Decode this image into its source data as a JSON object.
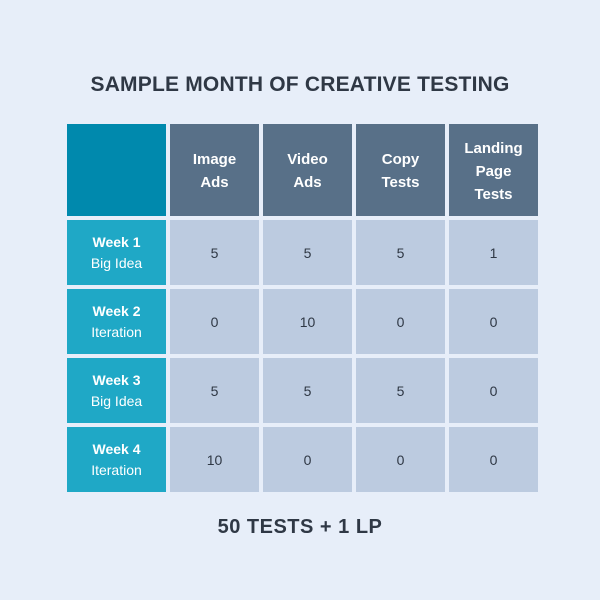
{
  "title": "SAMPLE MONTH OF CREATIVE TESTING",
  "colors": {
    "background": "#e7eef9",
    "corner": "#0089ad",
    "column_header": "#587088",
    "row_header": "#1fa8c6",
    "cell": "#bccbe0",
    "text": "#2f3845"
  },
  "table": {
    "columns": [
      "Image\nAds",
      "Video\nAds",
      "Copy\nTests",
      "Landing\nPage\nTests"
    ],
    "rows": [
      {
        "week": "Week 1",
        "label": "Big Idea",
        "values": [
          "5",
          "5",
          "5",
          "1"
        ]
      },
      {
        "week": "Week 2",
        "label": "Iteration",
        "values": [
          "0",
          "10",
          "0",
          "0"
        ]
      },
      {
        "week": "Week 3",
        "label": "Big Idea",
        "values": [
          "5",
          "5",
          "5",
          "0"
        ]
      },
      {
        "week": "Week 4",
        "label": "Iteration",
        "values": [
          "10",
          "0",
          "0",
          "0"
        ]
      }
    ]
  },
  "footer": "50 TESTS + 1 LP"
}
